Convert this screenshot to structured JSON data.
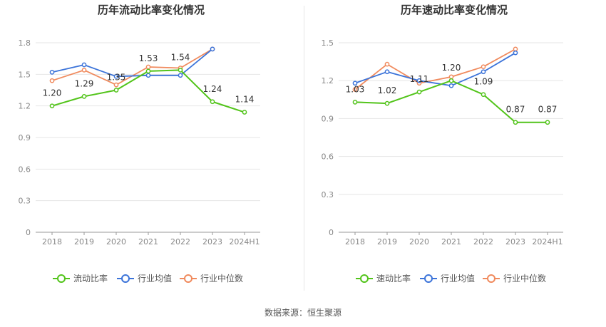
{
  "footer": {
    "source_label": "数据来源：恒生聚源"
  },
  "colors": {
    "main": "#52c41a",
    "avg": "#3b73d9",
    "median": "#f08a5d",
    "grid": "#e6e6e6",
    "axis": "#999999"
  },
  "chart_data": [
    {
      "type": "line",
      "title": "历年流动比率变化情况",
      "categories": [
        "2018",
        "2019",
        "2020",
        "2021",
        "2022",
        "2023",
        "2024H1"
      ],
      "yticks": [
        "0",
        "0.3",
        "0.6",
        "0.9",
        "1.2",
        "1.5",
        "1.8"
      ],
      "ylim": [
        0,
        1.8
      ],
      "grid": true,
      "legend_position": "bottom",
      "series": [
        {
          "name": "流动比率",
          "key": "main",
          "values": [
            1.2,
            1.29,
            1.35,
            1.53,
            1.54,
            1.24,
            1.14
          ],
          "labels": [
            "1.20",
            "1.29",
            "1.35",
            "1.53",
            "1.54",
            "1.24",
            "1.14"
          ]
        },
        {
          "name": "行业均值",
          "key": "avg",
          "values": [
            1.52,
            1.59,
            1.48,
            1.49,
            1.49,
            1.74,
            null
          ]
        },
        {
          "name": "行业中位数",
          "key": "median",
          "values": [
            1.44,
            1.54,
            1.4,
            1.57,
            1.56,
            1.74,
            null
          ]
        }
      ]
    },
    {
      "type": "line",
      "title": "历年速动比率变化情况",
      "categories": [
        "2018",
        "2019",
        "2020",
        "2021",
        "2022",
        "2023",
        "2024H1"
      ],
      "yticks": [
        "0",
        "0.3",
        "0.6",
        "0.9",
        "1.2",
        "1.5"
      ],
      "ylim": [
        0,
        1.5
      ],
      "grid": true,
      "legend_position": "bottom",
      "series": [
        {
          "name": "速动比率",
          "key": "main",
          "values": [
            1.03,
            1.02,
            1.11,
            1.2,
            1.09,
            0.87,
            0.87
          ],
          "labels": [
            "1.03",
            "1.02",
            "1.11",
            "1.20",
            "1.09",
            "0.87",
            "0.87"
          ]
        },
        {
          "name": "行业均值",
          "key": "avg",
          "values": [
            1.18,
            1.27,
            1.2,
            1.16,
            1.27,
            1.42,
            null
          ]
        },
        {
          "name": "行业中位数",
          "key": "median",
          "values": [
            1.13,
            1.33,
            1.18,
            1.23,
            1.31,
            1.45,
            null
          ]
        }
      ]
    }
  ]
}
